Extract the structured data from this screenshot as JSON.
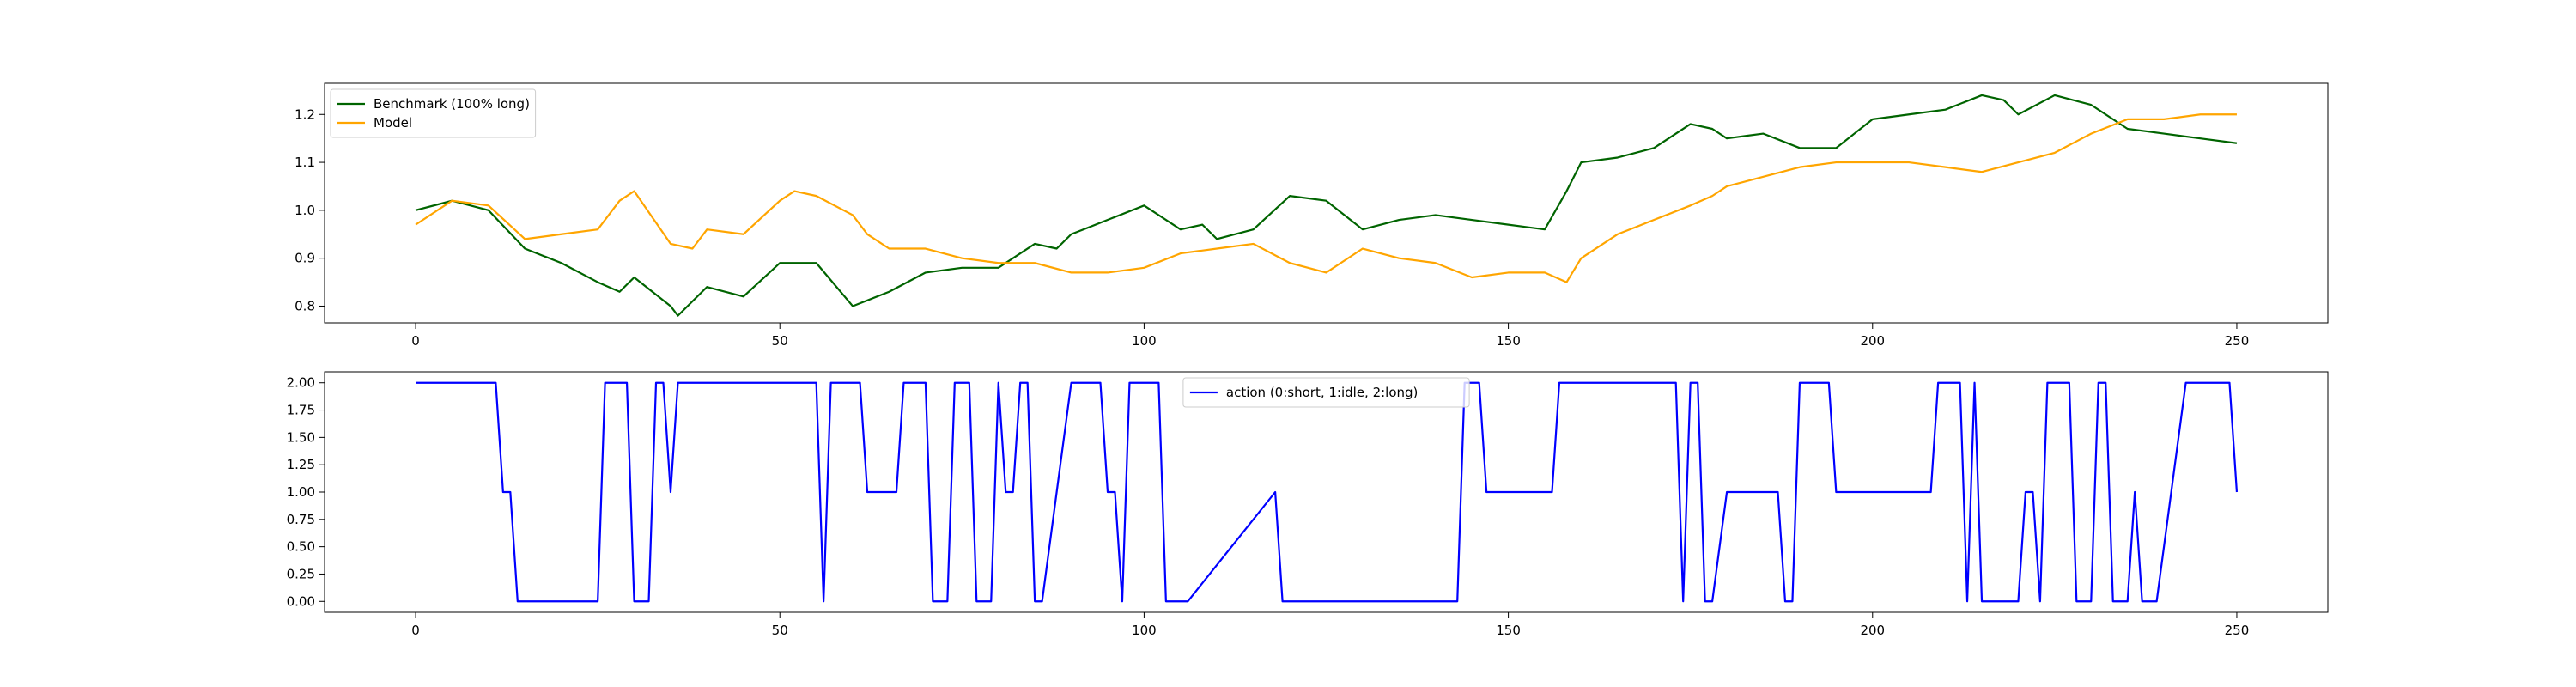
{
  "chart_data": [
    {
      "type": "line",
      "title": "",
      "xlabel": "",
      "ylabel": "",
      "xlim": [
        -12.5,
        262.5
      ],
      "ylim": [
        0.765,
        1.265
      ],
      "xticks": [
        0,
        50,
        100,
        150,
        200,
        250
      ],
      "xtick_labels": [
        "0",
        "50",
        "100",
        "150",
        "200",
        "250"
      ],
      "yticks": [
        0.8,
        0.9,
        1.0,
        1.1,
        1.2
      ],
      "ytick_labels": [
        "0.8",
        "0.9",
        "1.0",
        "1.1",
        "1.2"
      ],
      "grid": false,
      "legend_position": "top-left",
      "series": [
        {
          "name": "Benchmark (100% long)",
          "color": "#006400",
          "x": [
            0,
            5,
            10,
            15,
            20,
            25,
            28,
            30,
            35,
            36,
            40,
            45,
            50,
            55,
            60,
            65,
            70,
            75,
            80,
            85,
            88,
            90,
            95,
            100,
            105,
            108,
            110,
            115,
            120,
            125,
            130,
            135,
            140,
            145,
            150,
            155,
            158,
            160,
            165,
            170,
            175,
            178,
            180,
            185,
            190,
            195,
            200,
            205,
            210,
            215,
            218,
            220,
            225,
            230,
            235,
            240,
            245,
            250
          ],
          "values": [
            1.0,
            1.02,
            1.0,
            0.92,
            0.89,
            0.85,
            0.83,
            0.86,
            0.8,
            0.78,
            0.84,
            0.82,
            0.89,
            0.89,
            0.8,
            0.83,
            0.87,
            0.88,
            0.88,
            0.93,
            0.92,
            0.95,
            0.98,
            1.01,
            0.96,
            0.97,
            0.94,
            0.96,
            1.03,
            1.02,
            0.96,
            0.98,
            0.99,
            0.98,
            0.97,
            0.96,
            1.04,
            1.1,
            1.11,
            1.13,
            1.18,
            1.17,
            1.15,
            1.16,
            1.13,
            1.13,
            1.19,
            1.2,
            1.21,
            1.24,
            1.23,
            1.2,
            1.24,
            1.22,
            1.17,
            1.16,
            1.15,
            1.14
          ]
        },
        {
          "name": "Model",
          "color": "#FFA500",
          "x": [
            0,
            5,
            10,
            15,
            20,
            25,
            28,
            30,
            35,
            38,
            40,
            45,
            50,
            52,
            55,
            60,
            62,
            65,
            70,
            75,
            80,
            85,
            90,
            95,
            100,
            105,
            110,
            115,
            120,
            125,
            130,
            135,
            140,
            145,
            150,
            155,
            158,
            160,
            165,
            170,
            175,
            178,
            180,
            185,
            190,
            195,
            200,
            205,
            210,
            215,
            220,
            225,
            230,
            235,
            240,
            245,
            250
          ],
          "values": [
            0.97,
            1.02,
            1.01,
            0.94,
            0.95,
            0.96,
            1.02,
            1.04,
            0.93,
            0.92,
            0.96,
            0.95,
            1.02,
            1.04,
            1.03,
            0.99,
            0.95,
            0.92,
            0.92,
            0.9,
            0.89,
            0.89,
            0.87,
            0.87,
            0.88,
            0.91,
            0.92,
            0.93,
            0.89,
            0.87,
            0.92,
            0.9,
            0.89,
            0.86,
            0.87,
            0.87,
            0.85,
            0.9,
            0.95,
            0.98,
            1.01,
            1.03,
            1.05,
            1.07,
            1.09,
            1.1,
            1.1,
            1.1,
            1.09,
            1.08,
            1.1,
            1.12,
            1.16,
            1.19,
            1.19,
            1.2,
            1.2
          ]
        }
      ]
    },
    {
      "type": "line",
      "title": "",
      "xlabel": "",
      "ylabel": "",
      "xlim": [
        -12.5,
        262.5
      ],
      "ylim": [
        -0.1,
        2.1
      ],
      "xticks": [
        0,
        50,
        100,
        150,
        200,
        250
      ],
      "xtick_labels": [
        "0",
        "50",
        "100",
        "150",
        "200",
        "250"
      ],
      "yticks": [
        0,
        0.25,
        0.5,
        0.75,
        1.0,
        1.25,
        1.5,
        1.75,
        2.0
      ],
      "ytick_labels": [
        "0.00",
        "0.25",
        "0.50",
        "0.75",
        "1.00",
        "1.25",
        "1.50",
        "1.75",
        "2.00"
      ],
      "grid": false,
      "legend_position": "top-center",
      "series": [
        {
          "name": "action (0:short, 1:idle, 2:long)",
          "color": "#0000FF",
          "x": [
            0,
            11,
            12,
            13,
            14,
            25,
            26,
            29,
            30,
            32,
            33,
            34,
            35,
            36,
            55,
            56,
            57,
            61,
            62,
            66,
            67,
            70,
            71,
            73,
            74,
            76,
            77,
            79,
            80,
            81,
            82,
            83,
            84,
            85,
            86,
            90,
            91,
            94,
            95,
            96,
            97,
            98,
            99,
            102,
            103,
            105,
            106,
            118,
            119,
            120,
            121,
            143,
            144,
            146,
            147,
            156,
            157,
            173,
            174,
            175,
            176,
            177,
            178,
            180,
            181,
            187,
            188,
            189,
            190,
            194,
            195,
            208,
            209,
            212,
            213,
            214,
            215,
            220,
            221,
            222,
            223,
            224,
            227,
            228,
            230,
            231,
            232,
            233,
            235,
            236,
            237,
            238,
            239,
            243,
            244,
            249,
            250
          ],
          "values": [
            2,
            2,
            1,
            1,
            0,
            0,
            2,
            2,
            0,
            0,
            2,
            2,
            1,
            2,
            2,
            0,
            2,
            2,
            1,
            1,
            2,
            2,
            0,
            0,
            2,
            2,
            0,
            0,
            2,
            1,
            1,
            2,
            2,
            0,
            0,
            2,
            2,
            2,
            1,
            1,
            0,
            2,
            2,
            2,
            0,
            0,
            0,
            1,
            0,
            0,
            0,
            0,
            2,
            2,
            1,
            1,
            2,
            2,
            0,
            2,
            2,
            0,
            0,
            1,
            1,
            1,
            0,
            0,
            2,
            2,
            1,
            1,
            2,
            2,
            0,
            2,
            0,
            0,
            1,
            1,
            0,
            2,
            2,
            0,
            0,
            2,
            2,
            0,
            0,
            1,
            0,
            0,
            0,
            2,
            2,
            2,
            1
          ]
        }
      ]
    }
  ]
}
